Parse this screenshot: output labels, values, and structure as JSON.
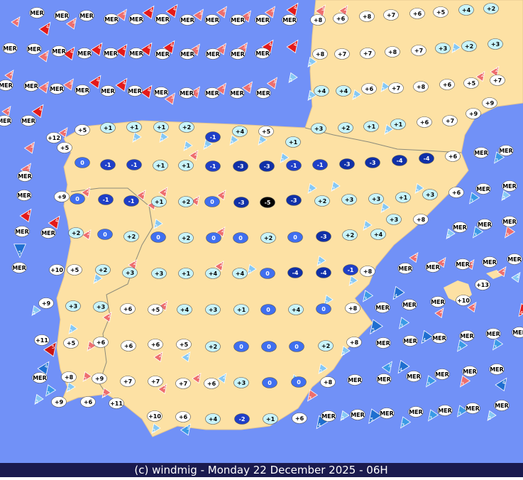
{
  "footer": "(c) windmig - Monday 22 December 2025 - 06H",
  "temperature_rows": [
    [
      "MER",
      "MER",
      "MER",
      "MER",
      "MER",
      "MER",
      "MER",
      "MER",
      "MER",
      "MER",
      "MER",
      "+8",
      "+6",
      "+8",
      "+7",
      "+6",
      "+5",
      "+4",
      "+2"
    ],
    [
      "MER",
      "MER",
      "MER",
      "MER",
      "MER",
      "MER",
      "MER",
      "MER",
      "MER",
      "MER",
      "MER",
      "+8",
      "+7",
      "+7",
      "+8",
      "+7",
      "+3",
      "+2",
      "+3"
    ],
    [
      "MER",
      "MER",
      "MER",
      "MER",
      "MER",
      "MER",
      "MER",
      "MER",
      "MER",
      "MER",
      "MER",
      "+4",
      "+4",
      "+6",
      "+7",
      "+8",
      "+6",
      "+5",
      "+7",
      "+9"
    ],
    [
      "MER",
      "MER",
      "+3",
      "+2",
      "+1",
      "+1",
      "+6",
      "+7",
      "+9"
    ],
    [
      "+12",
      "+5",
      "+5",
      "+1",
      "+1",
      "+1",
      "+2",
      "-1",
      "+4",
      "+5",
      "+1"
    ],
    [
      "0",
      "-1",
      "-1",
      "+1",
      "+1",
      "-1",
      "-3",
      "-3",
      "-1",
      "-1",
      "-3",
      "-3",
      "-4",
      "-4",
      "+6",
      "MER",
      "MER"
    ],
    [
      "MER",
      "MER",
      "+9",
      "0",
      "-1",
      "-1",
      "+1",
      "+2",
      "0",
      "-3",
      "-5",
      "-3",
      "+2",
      "+3",
      "+3",
      "+1",
      "+3",
      "+6",
      "MER",
      "MER"
    ],
    [
      "MER",
      "MER",
      "+2",
      "0",
      "+2",
      "0",
      "+2",
      "0",
      "0",
      "+2",
      "0",
      "-3",
      "+2",
      "+4",
      "+3",
      "+8",
      "MER",
      "MER",
      "MER"
    ],
    [
      "MER",
      "+10",
      "+5",
      "+2",
      "+3",
      "+3",
      "+1",
      "+4",
      "+4",
      "0",
      "-4",
      "-4",
      "-1",
      "+8",
      "MER",
      "MER",
      "MER",
      "MER",
      "MER",
      "+13"
    ],
    [
      "+9",
      "+3",
      "+3",
      "+6",
      "+5",
      "+4",
      "+3",
      "+1",
      "0",
      "+4",
      "0",
      "+8",
      "MER",
      "MER",
      "MER",
      "+10"
    ],
    [
      "+11",
      "+5",
      "+6",
      "+6",
      "+6",
      "+5",
      "+2",
      "0",
      "0",
      "0",
      "+2",
      "+8",
      "MER",
      "MER",
      "MER",
      "MER",
      "MER",
      "MER"
    ],
    [
      "MER",
      "+8",
      "+9",
      "+7",
      "+7",
      "+7",
      "+6",
      "+3",
      "0",
      "0",
      "+8",
      "MER",
      "MER",
      "MER",
      "MER",
      "MER",
      "MER"
    ],
    [
      "+9",
      "+6",
      "+11",
      "+10",
      "+6",
      "+4",
      "-2",
      "+1",
      "+6",
      "MER",
      "MER",
      "MER",
      "MER",
      "MER",
      "MER",
      "MER"
    ]
  ],
  "winds": [
    {
      "value": 2,
      "color": "#ee6e6e"
    },
    {
      "value": 4,
      "color": "#e41a1a"
    },
    {
      "value": 3,
      "color": "#ee6e6e"
    },
    {
      "value": 3,
      "color": "#ee6e6e"
    },
    {
      "value": 4,
      "color": "#e41a1a"
    },
    {
      "value": 4,
      "color": "#e41a1a"
    },
    {
      "value": 3,
      "color": "#ee6e6e"
    },
    {
      "value": 3,
      "color": "#ee6e6e"
    },
    {
      "value": 3,
      "color": "#ee6e6e"
    },
    {
      "value": 3,
      "color": "#ee6e6e"
    },
    {
      "value": 4,
      "color": "#e41a1a"
    },
    {
      "value": 3,
      "color": "#ee6e6e"
    },
    {
      "value": 2,
      "color": "#ee6e6e"
    },
    {
      "value": 3,
      "color": "#ee6e6e"
    },
    {
      "value": 4,
      "color": "#e41a1a"
    },
    {
      "value": 4,
      "color": "#e41a1a"
    },
    {
      "value": 4,
      "color": "#e41a1a"
    },
    {
      "value": 4,
      "color": "#e41a1a"
    },
    {
      "value": 4,
      "color": "#e41a1a"
    },
    {
      "value": 3,
      "color": "#ee6e6e"
    },
    {
      "value": 3,
      "color": "#ee6e6e"
    },
    {
      "value": 3,
      "color": "#ee6e6e"
    },
    {
      "value": 4,
      "color": "#e41a1a"
    },
    {
      "value": 4,
      "color": "#e41a1a"
    },
    {
      "value": 2,
      "color": "#86c8f4"
    },
    {
      "value": 2,
      "color": "#86c8f4"
    },
    {
      "value": 2,
      "color": "#ee6e6e"
    },
    {
      "value": 2,
      "color": "#ee6e6e"
    },
    {
      "value": 3,
      "color": "#ee6e6e"
    },
    {
      "value": 3,
      "color": "#ee6e6e"
    },
    {
      "value": 4,
      "color": "#e41a1a"
    },
    {
      "value": 4,
      "color": "#e41a1a"
    },
    {
      "value": 4,
      "color": "#e41a1a"
    },
    {
      "value": 3,
      "color": "#ee6e6e"
    },
    {
      "value": 3,
      "color": "#ee6e6e"
    },
    {
      "value": 3,
      "color": "#ee6e6e"
    },
    {
      "value": 3,
      "color": "#ee6e6e"
    },
    {
      "value": 3,
      "color": "#ee6e6e"
    },
    {
      "value": 2,
      "color": "#86c8f4"
    },
    {
      "value": 2,
      "color": "#86c8f4"
    },
    {
      "value": 2,
      "color": "#86c8f4"
    },
    {
      "value": 2,
      "color": "#86c8f4"
    },
    {
      "value": 2,
      "color": "#ee6e6e"
    },
    {
      "value": 2,
      "color": "#ee6e6e"
    },
    {
      "value": 4,
      "color": "#e41a1a"
    },
    {
      "value": 3,
      "color": "#ee6e6e"
    },
    {
      "value": 3,
      "color": "#ee6e6e"
    },
    {
      "value": 4,
      "color": "#e41a1a"
    },
    {
      "value": 4,
      "color": "#e41a1a"
    },
    {
      "value": 5,
      "color": "#1f6fd0"
    },
    {
      "value": 2,
      "color": "#ee6e6e"
    },
    {
      "value": 2,
      "color": "#86c8f4"
    },
    {
      "value": 2,
      "color": "#86c8f4"
    },
    {
      "value": 2,
      "color": "#86c8f4"
    },
    {
      "value": 2,
      "color": "#ee6e6e"
    },
    {
      "value": 2,
      "color": "#86c8f4"
    },
    {
      "value": 2,
      "color": "#86c8f4"
    },
    {
      "value": 2,
      "color": "#86c8f4"
    },
    {
      "value": 2,
      "color": "#86c8f4"
    },
    {
      "value": 2,
      "color": "#86c8f4"
    },
    {
      "value": 2,
      "color": "#ee6e6e"
    },
    {
      "value": 2,
      "color": "#ee6e6e"
    },
    {
      "value": 2,
      "color": "#ee6e6e"
    },
    {
      "value": 2,
      "color": "#ee6e6e"
    },
    {
      "value": 2,
      "color": "#ee6e6e"
    },
    {
      "value": 2,
      "color": "#ee6e6e"
    },
    {
      "value": 2,
      "color": "#86c8f4"
    },
    {
      "value": 2,
      "color": "#86c8f4"
    },
    {
      "value": 2,
      "color": "#86c8f4"
    },
    {
      "value": 2,
      "color": "#86c8f4"
    },
    {
      "value": 2,
      "color": "#ee6e6e"
    },
    {
      "value": 2,
      "color": "#86c8f4"
    },
    {
      "value": 2,
      "color": "#ee6e6e"
    },
    {
      "value": 2,
      "color": "#86c8f4"
    },
    {
      "value": 2,
      "color": "#ee6e6e"
    },
    {
      "value": 2,
      "color": "#86c8f4"
    },
    {
      "value": 2,
      "color": "#ee6e6e"
    },
    {
      "value": 2,
      "color": "#86c8f4"
    },
    {
      "value": 2,
      "color": "#86c8f4"
    },
    {
      "value": 2,
      "color": "#86c8f4"
    },
    {
      "value": 2,
      "color": "#ee6e6e"
    },
    {
      "value": 2,
      "color": "#ee6e6e"
    },
    {
      "value": 2,
      "color": "#86c8f4"
    },
    {
      "value": 2,
      "color": "#86c8f4"
    },
    {
      "value": 2,
      "color": "#ee6e6e"
    },
    {
      "value": 2,
      "color": "#ee6e6e"
    },
    {
      "value": 2,
      "color": "#86c8f4"
    },
    {
      "value": 2,
      "color": "#86c8f4"
    },
    {
      "value": 2,
      "color": "#86c8f4"
    },
    {
      "value": 2,
      "color": "#ee6e6e"
    },
    {
      "value": 2,
      "color": "#ee6e6e"
    },
    {
      "value": 2,
      "color": "#ee6e6e"
    },
    {
      "value": 2,
      "color": "#86c8f4"
    },
    {
      "value": 2,
      "color": "#86c8f4"
    },
    {
      "value": 2,
      "color": "#86c8f4"
    },
    {
      "value": 2,
      "color": "#ee6e6e"
    },
    {
      "value": 3,
      "color": "#3a9ae6"
    },
    {
      "value": 2,
      "color": "#86c8f4"
    },
    {
      "value": 4,
      "color": "#1f6fd0"
    },
    {
      "value": 3,
      "color": "#3a9ae6"
    },
    {
      "value": 4,
      "color": "#1f6fd0"
    },
    {
      "value": 5,
      "color": "#1f6fd0"
    },
    {
      "value": 3,
      "color": "#3a9ae6"
    },
    {
      "value": 4,
      "color": "#1f6fd0"
    },
    {
      "value": 3,
      "color": "#3a9ae6"
    },
    {
      "value": 3,
      "color": "#3a9ae6"
    },
    {
      "value": 4,
      "color": "#e41a1a"
    },
    {
      "value": 3,
      "color": "#3a9ae6"
    },
    {
      "value": 4,
      "color": "#1f6fd0"
    },
    {
      "value": 3,
      "color": "#3a9ae6"
    },
    {
      "value": 3,
      "color": "#ee6e6e"
    },
    {
      "value": 4,
      "color": "#1f6fd0"
    },
    {
      "value": 5,
      "color": "#1f6fd0"
    },
    {
      "value": 3,
      "color": "#3a9ae6"
    },
    {
      "value": 3,
      "color": "#3a9ae6"
    },
    {
      "value": 3,
      "color": "#3a9ae6"
    },
    {
      "value": 2,
      "color": "#86c8f4"
    },
    {
      "value": 2,
      "color": "#86c8f4"
    },
    {
      "value": 3,
      "color": "#ee6e6e"
    },
    {
      "value": 5,
      "color": "#c81414"
    },
    {
      "value": 4,
      "color": "#1f6fd0"
    },
    {
      "value": 2,
      "color": "#86c8f4"
    },
    {
      "value": 3,
      "color": "#3a9ae6"
    },
    {
      "value": 3,
      "color": "#3a9ae6"
    },
    {
      "value": 3,
      "color": "#3a9ae6"
    },
    {
      "value": 2,
      "color": "#86c8f4"
    },
    {
      "value": 2,
      "color": "#86c8f4"
    },
    {
      "value": 3,
      "color": "#3a9ae6"
    },
    {
      "value": 3,
      "color": "#ee6e6e"
    },
    {
      "value": 2,
      "color": "#ee6e6e"
    },
    {
      "value": 2,
      "color": "#ee6e6e"
    },
    {
      "value": 2,
      "color": "#ee6e6e"
    },
    {
      "value": 2,
      "color": "#ee6e6e"
    },
    {
      "value": 2,
      "color": "#ee6e6e"
    },
    {
      "value": 2,
      "color": "#ee6e6e"
    },
    {
      "value": 2,
      "color": "#86c8f4"
    },
    {
      "value": 2,
      "color": "#86c8f4"
    }
  ]
}
